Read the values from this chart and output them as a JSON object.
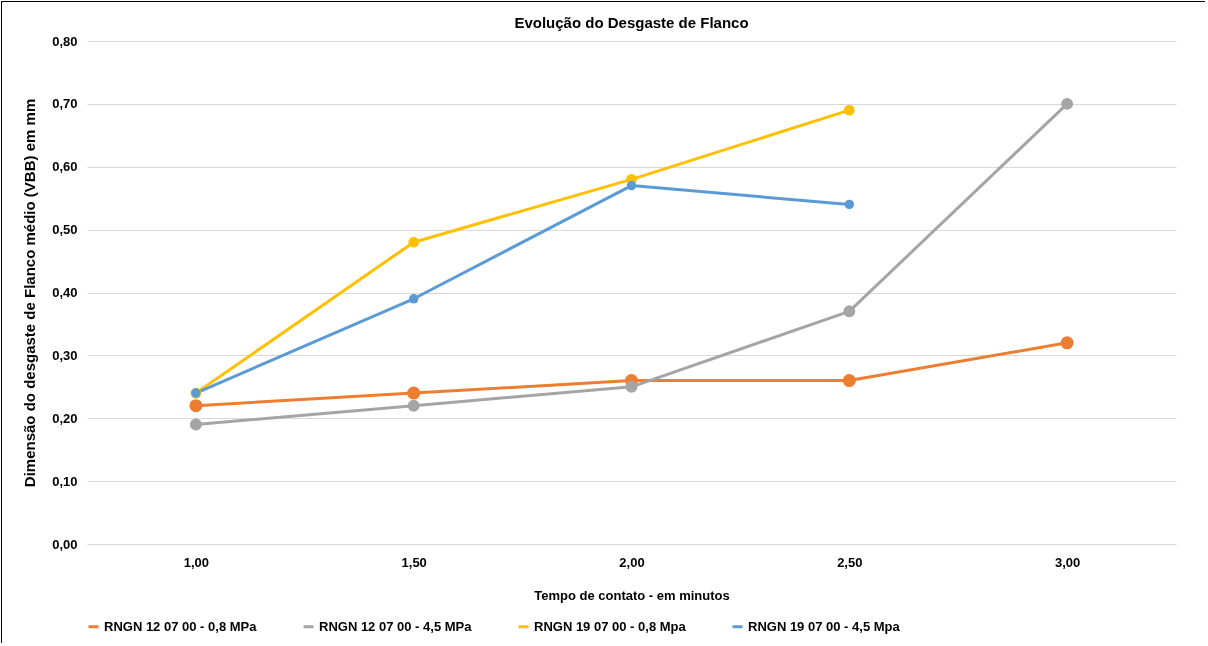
{
  "chart_data": {
    "type": "line",
    "title": "Evolução do Desgaste de Flanco",
    "xlabel": "Tempo de contato - em minutos",
    "ylabel": "Dimensão do desgaste de Flanco médio (VBB) em mm",
    "categories": [
      "1,00",
      "1,50",
      "2,00",
      "2,50",
      "3,00"
    ],
    "series": [
      {
        "name": "RNGN 12 07 00 - 0,8 MPa",
        "color": "#ed7d31",
        "values": [
          0.22,
          0.24,
          0.26,
          0.26,
          0.32
        ]
      },
      {
        "name": "RNGN 12 07 00 - 4,5 MPa",
        "color": "#a5a5a5",
        "values": [
          0.19,
          0.22,
          0.25,
          0.37,
          0.7
        ]
      },
      {
        "name": "RNGN 19 07 00 - 0,8 Mpa",
        "color": "#ffc000",
        "values": [
          0.24,
          0.48,
          0.58,
          0.69,
          null
        ]
      },
      {
        "name": "RNGN 19 07 00 - 4,5 Mpa",
        "color": "#5b9bd5",
        "values": [
          0.24,
          0.39,
          0.57,
          0.54,
          null
        ]
      }
    ],
    "ylim": [
      0,
      0.8
    ],
    "yticks": [
      {
        "value": 0,
        "label": "0,00"
      },
      {
        "value": 0.1,
        "label": "0,10"
      },
      {
        "value": 0.2,
        "label": "0,20"
      },
      {
        "value": 0.3,
        "label": "0,30"
      },
      {
        "value": 0.4,
        "label": "0,40"
      },
      {
        "value": 0.5,
        "label": "0,50"
      },
      {
        "value": 0.6,
        "label": "0,60"
      },
      {
        "value": 0.7,
        "label": "0,70"
      },
      {
        "value": 0.8,
        "label": "0,80"
      }
    ],
    "grid": "y",
    "legend": "bottom",
    "marker": "circle",
    "line_style": "solid"
  }
}
